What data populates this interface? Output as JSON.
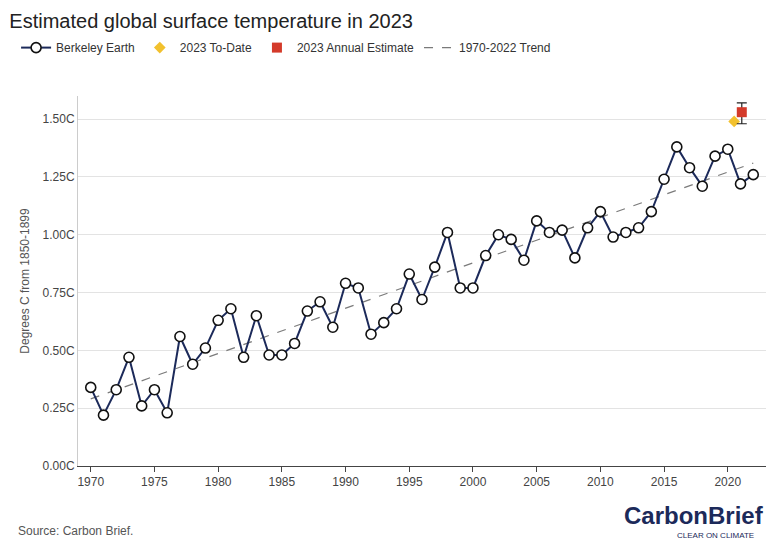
{
  "chart_data": {
    "type": "line",
    "title": "Estimated global surface temperature in 2023",
    "y_label": "Degrees C from 1850-1899",
    "annotations": [
      "Source: Carbon Brief.",
      "CarbonBrief",
      "CLEAR ON CLIMATE"
    ],
    "legend": "top left",
    "grid": true,
    "xlim": [
      1969,
      2023
    ],
    "xticks": [
      1970,
      1975,
      1980,
      1985,
      1990,
      1995,
      2000,
      2005,
      2010,
      2015,
      2020
    ],
    "ylim": [
      0,
      1.6
    ],
    "yticks": [
      {
        "value": 0,
        "label": "0.00C"
      },
      {
        "value": 0.25,
        "label": "0.25C"
      },
      {
        "value": 0.5,
        "label": "0.50C"
      },
      {
        "value": 0.75,
        "label": "0.75C"
      },
      {
        "value": 1,
        "label": "1.00C"
      },
      {
        "value": 1.25,
        "label": "1.25C"
      },
      {
        "value": 1.5,
        "label": "1.50C"
      }
    ],
    "series": [
      {
        "name": "Berkeley Earth",
        "type": "line",
        "color": "#1c2a5a",
        "marker": "circle",
        "line_style": "solid",
        "x": [
          1970,
          1971,
          1972,
          1973,
          1974,
          1975,
          1976,
          1977,
          1978,
          1979,
          1980,
          1981,
          1982,
          1983,
          1984,
          1985,
          1986,
          1987,
          1988,
          1989,
          1990,
          1991,
          1992,
          1993,
          1994,
          1995,
          1996,
          1997,
          1998,
          1999,
          2000,
          2001,
          2002,
          2003,
          2004,
          2005,
          2006,
          2007,
          2008,
          2009,
          2010,
          2011,
          2012,
          2013,
          2014,
          2015,
          2016,
          2017,
          2018,
          2019,
          2020,
          2021,
          2022
        ],
        "values": [
          0.34,
          0.22,
          0.33,
          0.47,
          0.26,
          0.33,
          0.23,
          0.56,
          0.44,
          0.51,
          0.63,
          0.68,
          0.47,
          0.65,
          0.48,
          0.48,
          0.53,
          0.67,
          0.71,
          0.6,
          0.79,
          0.77,
          0.57,
          0.62,
          0.68,
          0.83,
          0.72,
          0.86,
          1.01,
          0.77,
          0.77,
          0.91,
          1.0,
          0.98,
          0.89,
          1.06,
          1.01,
          1.02,
          0.9,
          1.03,
          1.1,
          0.99,
          1.01,
          1.03,
          1.1,
          1.24,
          1.38,
          1.29,
          1.21,
          1.34,
          1.37,
          1.22,
          1.26
        ]
      },
      {
        "name": "2023 To-Date",
        "type": "scatter",
        "color": "#f2c12e",
        "marker": "diamond",
        "x": [
          2020.5
        ],
        "values": [
          1.49
        ]
      },
      {
        "name": "2023 Annual Estimate",
        "type": "scatter",
        "color": "#d43a2a",
        "marker": "square",
        "x": [
          2021.1
        ],
        "values": [
          1.53
        ],
        "error_plus": [
          0.04
        ],
        "error_minus": [
          0.05
        ]
      },
      {
        "name": "1970-2022 Trend",
        "type": "line",
        "color": "#7a7a7a",
        "line_style": "dashed",
        "x": [
          1970,
          2022
        ],
        "values": [
          0.29,
          1.31
        ]
      }
    ]
  }
}
